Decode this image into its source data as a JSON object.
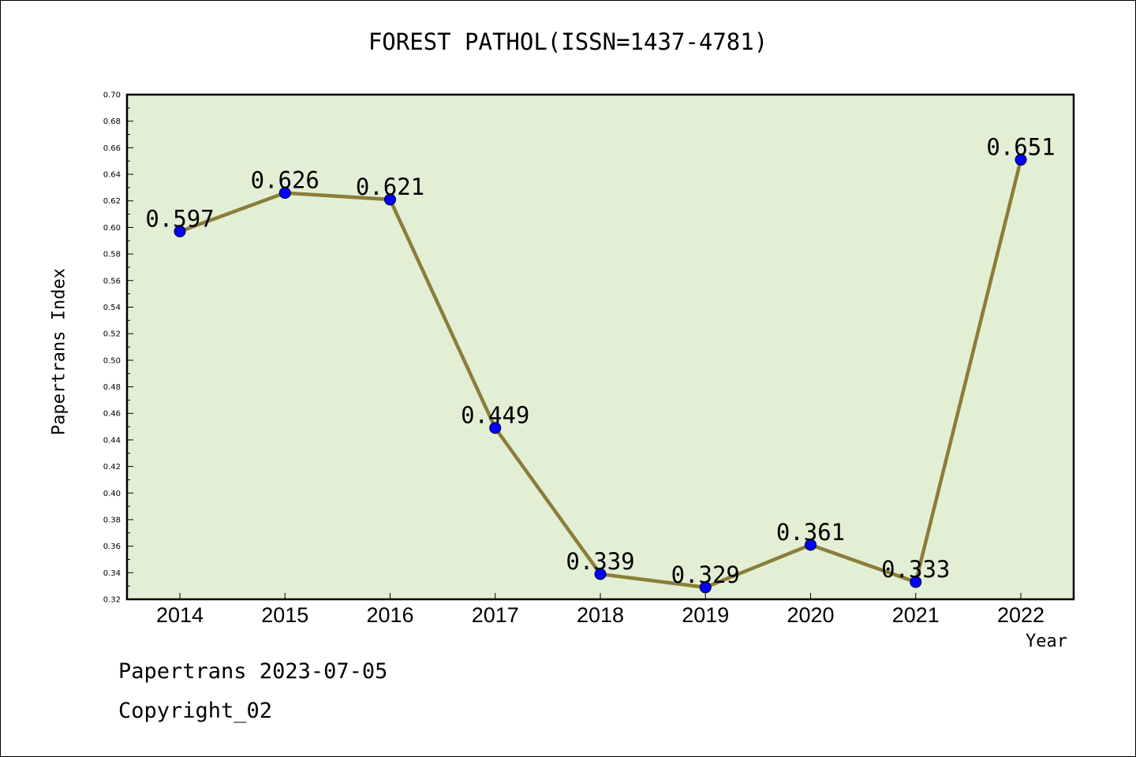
{
  "chart_data": {
    "type": "line",
    "title": "FOREST PATHOL(ISSN=1437-4781)",
    "xlabel": "Year",
    "ylabel": "Papertrans Index",
    "ylim": [
      0.32,
      0.7
    ],
    "yticks": [
      "0.32",
      "0.34",
      "0.36",
      "0.38",
      "0.40",
      "0.42",
      "0.44",
      "0.46",
      "0.48",
      "0.50",
      "0.52",
      "0.54",
      "0.56",
      "0.58",
      "0.60",
      "0.62",
      "0.64",
      "0.66",
      "0.68",
      "0.70"
    ],
    "categories": [
      "2014",
      "2015",
      "2016",
      "2017",
      "2018",
      "2019",
      "2020",
      "2021",
      "2022"
    ],
    "series": [
      {
        "values": [
          0.597,
          0.626,
          0.621,
          0.449,
          0.339,
          0.329,
          0.361,
          0.333,
          0.651
        ],
        "labels": [
          "0.597",
          "0.626",
          "0.621",
          "0.449",
          "0.339",
          "0.329",
          "0.361",
          "0.333",
          "0.651"
        ]
      }
    ],
    "grid": false,
    "colors": {
      "plot_background": "#e2efd5",
      "line": "#8b7d3a",
      "marker": "#0000ff"
    }
  },
  "footer": {
    "line1": "Papertrans 2023-07-05",
    "line2": "Copyright_02"
  }
}
